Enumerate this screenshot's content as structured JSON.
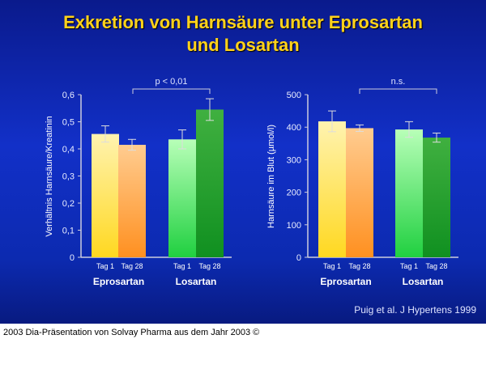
{
  "title_line1": "Exkretion von Harnsäure unter Eprosartan",
  "title_line2": "und Losartan",
  "citation": "Puig et al. J Hypertens 1999",
  "caption": "2003 Dia-Präsentation von Solvay Pharma aus dem Jahr 2003 ©",
  "colors": {
    "tag1_epro": "#ffe85a",
    "tag28_epro": "#ff9f30",
    "tag1_losa": "#6ef27a",
    "tag28_losa": "#1fa82a",
    "title": "#ffd21a"
  },
  "chart_data": [
    {
      "type": "bar",
      "ylabel": "Verhältnis Harnsäure/Kreatinin",
      "ylim": [
        0,
        0.6
      ],
      "yticks": [
        "0",
        "0,1",
        "0,2",
        "0,3",
        "0,4",
        "0,5",
        "0,6"
      ],
      "groups": [
        "Eprosartan",
        "Losartan"
      ],
      "categories": [
        "Tag 1",
        "Tag 28"
      ],
      "values": [
        [
          0.455,
          0.415
        ],
        [
          0.435,
          0.545
        ]
      ],
      "errors": [
        [
          0.03,
          0.02
        ],
        [
          0.035,
          0.04
        ]
      ],
      "annotation": "p < 0,01"
    },
    {
      "type": "bar",
      "ylabel": "Harnsäure im Blut (µmol/l)",
      "ylim": [
        0,
        500
      ],
      "yticks": [
        "0",
        "100",
        "200",
        "300",
        "400",
        "500"
      ],
      "groups": [
        "Eprosartan",
        "Losartan"
      ],
      "categories": [
        "Tag 1",
        "Tag 28"
      ],
      "values": [
        [
          418,
          397
        ],
        [
          393,
          368
        ]
      ],
      "errors": [
        [
          32,
          10
        ],
        [
          24,
          14
        ]
      ],
      "annotation": "n.s."
    }
  ]
}
